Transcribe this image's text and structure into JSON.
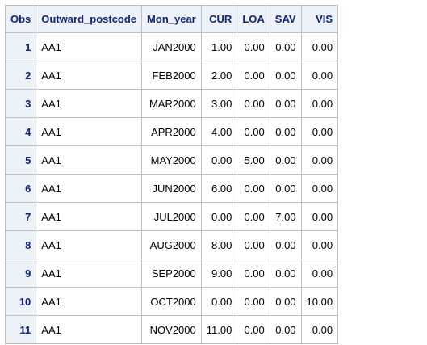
{
  "table": {
    "headers": [
      "Obs",
      "Outward_postcode",
      "Mon_year",
      "CUR",
      "LOA",
      "SAV",
      "VIS"
    ],
    "rows": [
      [
        "1",
        "AA1",
        "JAN2000",
        "1.00",
        "0.00",
        "0.00",
        "0.00"
      ],
      [
        "2",
        "AA1",
        "FEB2000",
        "2.00",
        "0.00",
        "0.00",
        "0.00"
      ],
      [
        "3",
        "AA1",
        "MAR2000",
        "3.00",
        "0.00",
        "0.00",
        "0.00"
      ],
      [
        "4",
        "AA1",
        "APR2000",
        "4.00",
        "0.00",
        "0.00",
        "0.00"
      ],
      [
        "5",
        "AA1",
        "MAY2000",
        "0.00",
        "5.00",
        "0.00",
        "0.00"
      ],
      [
        "6",
        "AA1",
        "JUN2000",
        "6.00",
        "0.00",
        "0.00",
        "0.00"
      ],
      [
        "7",
        "AA1",
        "JUL2000",
        "0.00",
        "0.00",
        "7.00",
        "0.00"
      ],
      [
        "8",
        "AA1",
        "AUG2000",
        "8.00",
        "0.00",
        "0.00",
        "0.00"
      ],
      [
        "9",
        "AA1",
        "SEP2000",
        "9.00",
        "0.00",
        "0.00",
        "0.00"
      ],
      [
        "10",
        "AA1",
        "OCT2000",
        "0.00",
        "0.00",
        "0.00",
        "10.00"
      ],
      [
        "11",
        "AA1",
        "NOV2000",
        "11.00",
        "0.00",
        "0.00",
        "0.00"
      ]
    ]
  },
  "colors": {
    "header_bg": "#edf2f9",
    "header_text": "#112277",
    "grid": "#c1c1c1"
  }
}
